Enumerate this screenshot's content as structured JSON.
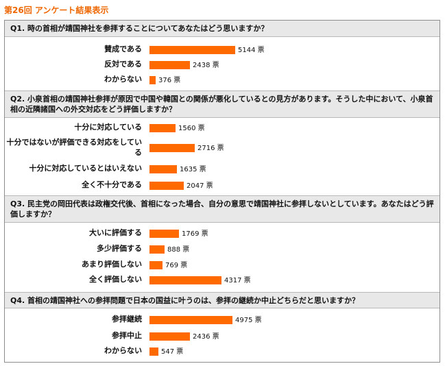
{
  "page_title": "第26回 アンケート結果表示",
  "unit": "票",
  "accent_color": "#ff6a00",
  "title_color": "#ee6600",
  "chart_data": [
    {
      "type": "bar",
      "question": "Q1. 時の首相が靖国神社を参拝することについてあなたはどう思いますか？",
      "categories": [
        "賛成である",
        "反対である",
        "わからない"
      ],
      "values": [
        5144,
        2438,
        376
      ]
    },
    {
      "type": "bar",
      "question": "Q2. 小泉首相の靖国神社参拝が原因で中国や韓国との関係が悪化しているとの見方があります。そうした中において、小泉首相の近隣諸国への外交対応をどう評価しますか？",
      "categories": [
        "十分に対応している",
        "十分ではないが評価できる対応をしている",
        "十分に対応しているとはいえない",
        "全く不十分である"
      ],
      "values": [
        1560,
        2716,
        1635,
        2047
      ]
    },
    {
      "type": "bar",
      "question": "Q3. 民主党の岡田代表は政権交代後、首相になった場合、自分の意思で靖国神社に参拝しないとしています。あなたはどう評価しますか？",
      "categories": [
        "大いに評価する",
        "多少評価する",
        "あまり評価しない",
        "全く評価しない"
      ],
      "values": [
        1769,
        888,
        769,
        4317
      ]
    },
    {
      "type": "bar",
      "question": "Q4. 首相の靖国神社への参拝問題で日本の国益に叶うのは、参拝の継続か中止どちらだと思いますか？",
      "categories": [
        "参拝継続",
        "参拝中止",
        "わからない"
      ],
      "values": [
        4975,
        2436,
        547
      ]
    }
  ]
}
